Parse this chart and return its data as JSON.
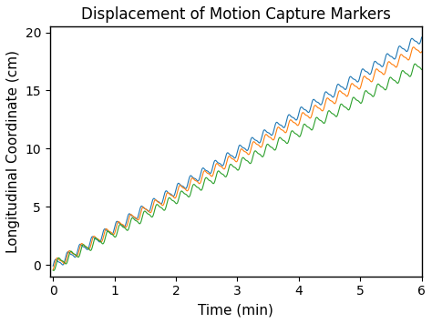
{
  "title": "Displacement of Motion Capture Markers",
  "xlabel": "Time (min)",
  "ylabel": "Longitudinal Coordinate (cm)",
  "xlim": [
    -0.05,
    6.0
  ],
  "ylim": [
    -1.0,
    20.5
  ],
  "xticks": [
    0,
    1,
    2,
    3,
    4,
    5,
    6
  ],
  "yticks": [
    0,
    5,
    10,
    15,
    20
  ],
  "duration": 6.0,
  "n_points": 6000,
  "line_colors": [
    "#1f77b4",
    "#ff7f0e",
    "#2ca02c"
  ],
  "slopes": [
    3.28,
    3.13,
    2.88
  ],
  "intercepts": [
    -0.1,
    -0.05,
    -0.1
  ],
  "osc_amplitudes": [
    0.38,
    0.38,
    0.38
  ],
  "osc_cycles": 30,
  "osc_phase_offsets": [
    0.0,
    0.8,
    1.6
  ],
  "linewidth": 0.8,
  "title_fontsize": 12,
  "label_fontsize": 11,
  "tick_fontsize": 10,
  "background_color": "#ffffff",
  "figure_facecolor": "#f0f0f0"
}
